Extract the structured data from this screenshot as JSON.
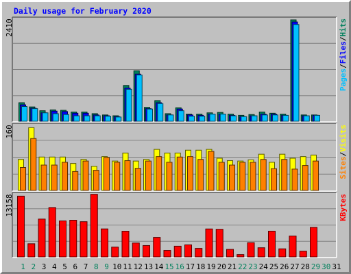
{
  "title": "Daily usage for February 2020",
  "colors": {
    "background": "#c0c0c0",
    "title": "#0000ff",
    "hits": "#00805c",
    "files": "#0000ff",
    "pages": "#00c0ff",
    "visits": "#ffff00",
    "sites": "#ff8000",
    "kbytes": "#ff0000",
    "weekend": "#00805c",
    "weekday": "#000000"
  },
  "chart_data": [
    {
      "type": "bar",
      "panel": "hits-files-pages",
      "ylabel_max": "2410",
      "ymax": 2410,
      "legend": [
        "Pages",
        "Files",
        "Hits"
      ],
      "x": [
        "1",
        "2",
        "3",
        "4",
        "5",
        "6",
        "7",
        "8",
        "9",
        "10",
        "11",
        "12",
        "13",
        "14",
        "15",
        "16",
        "17",
        "18",
        "19",
        "20",
        "21",
        "22",
        "23",
        "24",
        "25",
        "26",
        "27",
        "28",
        "29"
      ],
      "series": [
        {
          "name": "Hits",
          "values": [
            440,
            340,
            250,
            270,
            260,
            220,
            220,
            180,
            150,
            130,
            850,
            1200,
            330,
            490,
            180,
            320,
            170,
            170,
            200,
            210,
            170,
            140,
            160,
            220,
            190,
            170,
            2410,
            150,
            150
          ]
        },
        {
          "name": "Files",
          "values": [
            390,
            310,
            200,
            240,
            230,
            190,
            190,
            150,
            130,
            110,
            790,
            1120,
            300,
            440,
            150,
            290,
            150,
            140,
            170,
            170,
            140,
            110,
            130,
            170,
            170,
            140,
            2360,
            130,
            140
          ]
        },
        {
          "name": "Pages",
          "values": [
            350,
            300,
            200,
            180,
            160,
            130,
            130,
            130,
            120,
            100,
            760,
            1100,
            290,
            420,
            150,
            250,
            120,
            120,
            170,
            170,
            130,
            110,
            130,
            150,
            150,
            140,
            2300,
            130,
            140
          ]
        }
      ]
    },
    {
      "type": "bar",
      "panel": "visits-sites",
      "ylabel_max": "160",
      "ymax": 160,
      "legend": [
        "Sites",
        "Visits"
      ],
      "x": [
        "1",
        "2",
        "3",
        "4",
        "5",
        "6",
        "7",
        "8",
        "9",
        "10",
        "11",
        "12",
        "13",
        "14",
        "15",
        "16",
        "17",
        "18",
        "19",
        "20",
        "21",
        "22",
        "23",
        "24",
        "25",
        "26",
        "27",
        "28",
        "29"
      ],
      "series": [
        {
          "name": "Visits",
          "values": [
            77,
            156,
            83,
            83,
            83,
            67,
            77,
            60,
            84,
            73,
            93,
            73,
            77,
            102,
            93,
            93,
            100,
            100,
            102,
            80,
            74,
            73,
            76,
            90,
            70,
            90,
            80,
            84,
            88
          ]
        },
        {
          "name": "Sites",
          "values": [
            57,
            129,
            63,
            63,
            70,
            47,
            73,
            50,
            82,
            70,
            74,
            55,
            73,
            84,
            70,
            83,
            84,
            77,
            97,
            70,
            63,
            70,
            70,
            77,
            54,
            77,
            53,
            62,
            73
          ]
        }
      ]
    },
    {
      "type": "bar",
      "panel": "kbytes",
      "ylabel_max": "13158",
      "ymax": 13158,
      "legend": [
        "KBytes"
      ],
      "x": [
        "1",
        "2",
        "3",
        "4",
        "5",
        "6",
        "7",
        "8",
        "9",
        "10",
        "11",
        "12",
        "13",
        "14",
        "15",
        "16",
        "17",
        "18",
        "19",
        "20",
        "21",
        "22",
        "23",
        "24",
        "25",
        "26",
        "27",
        "28",
        "29"
      ],
      "series": [
        {
          "name": "KBytes",
          "values": [
            12960,
            2800,
            8070,
            10530,
            7680,
            7820,
            7510,
            13350,
            5970,
            2090,
            5480,
            2960,
            2420,
            4150,
            1380,
            2280,
            2570,
            1810,
            5960,
            5890,
            1600,
            490,
            3030,
            1950,
            5490,
            1720,
            4460,
            1220,
            6300
          ]
        }
      ]
    }
  ],
  "x_axis": {
    "labels": [
      "1",
      "2",
      "3",
      "4",
      "5",
      "6",
      "7",
      "8",
      "9",
      "10",
      "11",
      "12",
      "13",
      "14",
      "15",
      "16",
      "17",
      "18",
      "19",
      "20",
      "21",
      "22",
      "23",
      "24",
      "25",
      "26",
      "27",
      "28",
      "29",
      "30",
      "31"
    ],
    "weekend_days": [
      "1",
      "2",
      "8",
      "9",
      "15",
      "16",
      "22",
      "23",
      "29",
      "30"
    ]
  }
}
